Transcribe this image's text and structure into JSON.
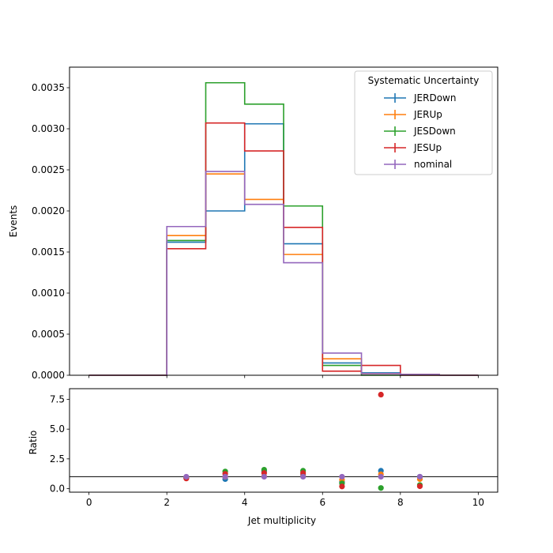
{
  "chart_data": [
    {
      "type": "step-histogram",
      "ylabel": "Events",
      "xlim": [
        -0.5,
        10.5
      ],
      "ylim": [
        0,
        0.00375
      ],
      "yticks": [
        "0.0000",
        "0.0005",
        "0.0010",
        "0.0015",
        "0.0020",
        "0.0025",
        "0.0030",
        "0.0035"
      ],
      "ytick_values": [
        0,
        0.0005,
        0.001,
        0.0015,
        0.002,
        0.0025,
        0.003,
        0.0035
      ],
      "xtick_values": [
        0,
        2,
        4,
        6,
        8,
        10
      ],
      "bin_edges": [
        0,
        1,
        2,
        3,
        4,
        5,
        6,
        7,
        8,
        9,
        10
      ],
      "legend": {
        "title": "Systematic Uncertainty",
        "placement": "top-right"
      },
      "series": [
        {
          "name": "JERDown",
          "color": "#1f77b4",
          "values": [
            0,
            0,
            0.00162,
            0.002,
            0.00306,
            0.0016,
            0.00015,
            3e-05,
            1e-05,
            0
          ]
        },
        {
          "name": "JERUp",
          "color": "#ff7f0e",
          "values": [
            0,
            0,
            0.0017,
            0.00245,
            0.00214,
            0.00147,
            0.0002,
            2e-05,
            1e-05,
            0
          ]
        },
        {
          "name": "JESDown",
          "color": "#2ca02c",
          "values": [
            0,
            0,
            0.00164,
            0.00356,
            0.0033,
            0.00206,
            0.00012,
            0,
            0,
            0
          ]
        },
        {
          "name": "JESUp",
          "color": "#d62728",
          "values": [
            0,
            0,
            0.00154,
            0.00307,
            0.00273,
            0.0018,
            5e-05,
            0.00012,
            0,
            0
          ]
        },
        {
          "name": "nominal",
          "color": "#9467bd",
          "values": [
            0,
            0,
            0.00181,
            0.00248,
            0.00208,
            0.00137,
            0.00027,
            2e-05,
            1e-05,
            0
          ]
        }
      ]
    },
    {
      "type": "scatter",
      "xlabel": "Jet multiplicity",
      "ylabel": "Ratio",
      "xlim": [
        -0.5,
        10.5
      ],
      "ylim": [
        -0.3,
        8.4
      ],
      "xticks": [
        "0",
        "2",
        "4",
        "6",
        "8",
        "10"
      ],
      "xtick_values": [
        0,
        2,
        4,
        6,
        8,
        10
      ],
      "yticks": [
        "0.0",
        "2.5",
        "5.0",
        "7.5"
      ],
      "ytick_values": [
        0,
        2.5,
        5.0,
        7.5
      ],
      "reference_line": 1.0,
      "x": [
        2.5,
        3.5,
        4.5,
        5.5,
        6.5,
        7.5,
        8.5
      ],
      "series": [
        {
          "name": "JERDown",
          "color": "#1f77b4",
          "values": [
            0.9,
            0.8,
            1.47,
            1.17,
            0.55,
            1.5,
            1.0
          ]
        },
        {
          "name": "JERUp",
          "color": "#ff7f0e",
          "values": [
            0.94,
            0.99,
            1.03,
            1.07,
            0.74,
            1.2,
            0.8
          ]
        },
        {
          "name": "JESDown",
          "color": "#2ca02c",
          "values": [
            0.91,
            1.44,
            1.59,
            1.5,
            0.44,
            0.05,
            0.3
          ]
        },
        {
          "name": "JESUp",
          "color": "#d62728",
          "values": [
            0.85,
            1.24,
            1.31,
            1.31,
            0.18,
            7.9,
            0.2
          ]
        },
        {
          "name": "nominal",
          "color": "#9467bd",
          "values": [
            1.0,
            1.0,
            1.0,
            1.0,
            1.0,
            1.0,
            1.0
          ]
        }
      ]
    }
  ]
}
